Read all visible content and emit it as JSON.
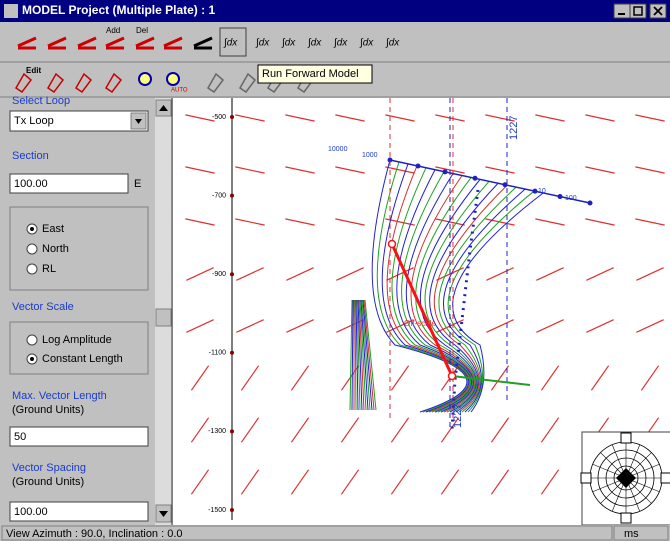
{
  "window": {
    "title": "MODEL Project (Multiple Plate) : 1"
  },
  "toolbar": {
    "tooltip": "Run Forward Model",
    "button_labels": [
      "Add",
      "Del",
      "Edit",
      "AUTO"
    ]
  },
  "panel": {
    "select_loop_label": "Select Loop",
    "loop": "Tx Loop",
    "section_label": "Section",
    "section_value": "100.00",
    "section_unit": "E",
    "orientation_options": [
      "East",
      "North",
      "RL"
    ],
    "vector_scale_label": "Vector Scale",
    "vector_scale_options": [
      "Log Amplitude",
      "Constant Length"
    ],
    "max_length_label": "Max. Vector Length",
    "max_length_units": "(Ground Units)",
    "max_length_value": "50",
    "spacing_label": "Vector Spacing",
    "spacing_units": "(Ground Units)",
    "spacing_value": "100.00"
  },
  "plot": {
    "axis_labels": [
      "-500",
      "-700",
      "-900",
      "-1100",
      "-1300",
      "-1500"
    ],
    "profile_labels": [
      "10000",
      "1000",
      "100",
      "10"
    ],
    "line_labels": [
      "1227",
      "1227"
    ],
    "annotation": "Off-scale"
  },
  "status": {
    "view": "View Azimuth : 90.0, Inclination : 0.0",
    "units": "ms"
  }
}
